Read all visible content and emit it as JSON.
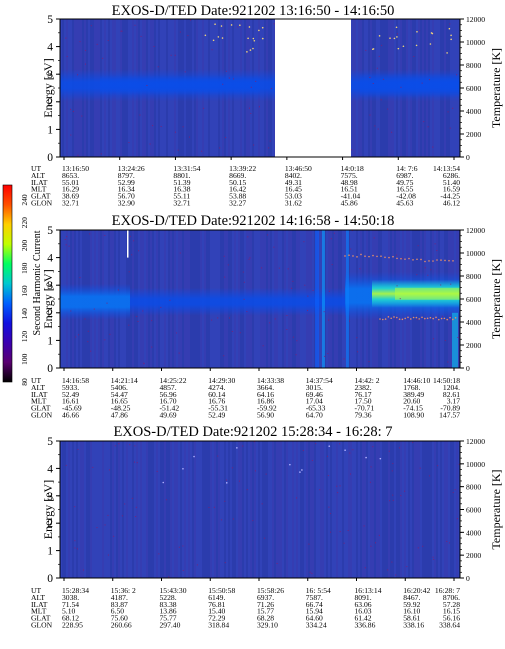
{
  "colors": {
    "background": "#2f3fb4",
    "band_core": "#0a4de8",
    "band_hot": "#22d8d0",
    "band_hot2": "#b4ff3c",
    "speckle": "#8a1a6a",
    "gap": "#ffffff"
  },
  "colorbar": {
    "label": "Second Harmonic Current",
    "ticks": [
      "240",
      "220",
      "200",
      "180",
      "160",
      "140",
      "120",
      "100",
      "80"
    ],
    "colors": [
      "#000000",
      "#5a0070",
      "#3a00b0",
      "#1010e0",
      "#0060ff",
      "#00c8d0",
      "#00ff60",
      "#c0ff00",
      "#ffd000",
      "#ff5000",
      "#ff0000"
    ]
  },
  "chart_data": [
    {
      "type": "heatmap",
      "title": "EXOS-D/TED   Date:921202   13:16:50 - 14:16:50",
      "ylabel": "Energy [eV]",
      "y2label": "Temperature [K]",
      "ylim": [
        0,
        5
      ],
      "y2lim": [
        0,
        12000
      ],
      "yticks": [
        "0",
        "1",
        "2",
        "3",
        "4",
        "5"
      ],
      "y2ticks": [
        "0",
        "2000",
        "4000",
        "6000",
        "8000",
        "10000",
        "12000"
      ],
      "band_center_eV": 2.6,
      "data_gap": true,
      "ephemeris": {
        "labels": [
          "UT",
          "ALT",
          "ILAT",
          "MLT",
          "GLAT",
          "GLON"
        ],
        "columns": [
          [
            "13:16:50",
            "8653.",
            "55.01",
            "16.29",
            "38.69",
            "32.71"
          ],
          [
            "13:24:26",
            "8797.",
            "52.99",
            "16.34",
            "56.70",
            "32.90"
          ],
          [
            "13:31:54",
            "8801.",
            "51.39",
            "16.38",
            "55.11",
            "32.71"
          ],
          [
            "13:39:22",
            "8669.",
            "50.15",
            "16.42",
            "53.88",
            "32.27"
          ],
          [
            "13:46:50",
            "8402.",
            "49.31",
            "16.45",
            "53.03",
            "31.62"
          ],
          [
            "14:0:18",
            "7575.",
            "48.98",
            "16.51",
            "-41.04",
            "45.86"
          ],
          [
            "14: 7:6",
            "6987.",
            "49.75",
            "16.55",
            "-42.08",
            "45.63"
          ],
          [
            "14:13:54",
            "6286.",
            "51.40",
            "16.59",
            "-44.25",
            "46.12"
          ]
        ]
      }
    },
    {
      "type": "heatmap",
      "title": "EXOS-D/TED   Date:921202   14:16:58 - 14:50:18",
      "ylabel": "Energy [eV]",
      "y2label": "Temperature [K]",
      "ylim": [
        0,
        5
      ],
      "y2lim": [
        0,
        12000
      ],
      "yticks": [
        "0",
        "1",
        "2",
        "3",
        "4",
        "5"
      ],
      "y2ticks": [
        "0",
        "2000",
        "4000",
        "6000",
        "8000",
        "10000",
        "12000"
      ],
      "band_center_eV": 2.4,
      "ephemeris": {
        "labels": [
          "UT",
          "ALT",
          "ILAT",
          "MLT",
          "GLAT",
          "GLON"
        ],
        "columns": [
          [
            "14:16:58",
            "5933.",
            "52.49",
            "16.61",
            "-45.69",
            "46.66"
          ],
          [
            "14:21:14",
            "5406.",
            "54.47",
            "16.65",
            "-48.25",
            "47.86"
          ],
          [
            "14:25:22",
            "4857.",
            "56.96",
            "16.70",
            "-51.42",
            "49.69"
          ],
          [
            "14:29:30",
            "4274.",
            "60.14",
            "16.76",
            "-55.31",
            "52.49"
          ],
          [
            "14:33:38",
            "3664.",
            "64.16",
            "16.86",
            "-59.92",
            "56.90"
          ],
          [
            "14:37:54",
            "3015.",
            "69.46",
            "17.04",
            "-65.33",
            "64.70"
          ],
          [
            "14:42: 2",
            "2382.",
            "76.17",
            "17.50",
            "-70.71",
            "79.36"
          ],
          [
            "14:46:10",
            "1768.",
            "389.49",
            "20.60",
            "-74.15",
            "108.90"
          ],
          [
            "14:50:18",
            "1204.",
            "82.61",
            "3.17",
            "-70.89",
            "147.57"
          ]
        ]
      }
    },
    {
      "type": "heatmap",
      "title": "EXOS-D/TED   Date:921202   15:28:34 - 16:28: 7",
      "ylabel": "Energy [eV]",
      "y2label": "Temperature [K]",
      "ylim": [
        0,
        5
      ],
      "y2lim": [
        0,
        12000
      ],
      "yticks": [
        "0",
        "1",
        "2",
        "3",
        "4",
        "5"
      ],
      "y2ticks": [
        "0",
        "2000",
        "4000",
        "6000",
        "8000",
        "10000",
        "12000"
      ],
      "ephemeris": {
        "labels": [
          "UT",
          "ALT",
          "ILAT",
          "MLT",
          "GLAT",
          "GLON"
        ],
        "columns": [
          [
            "15:28:34",
            "3038.",
            "71.54",
            "5.10",
            "68.12",
            "228.95"
          ],
          [
            "15:36: 2",
            "4187.",
            "83.87",
            "6.50",
            "75.60",
            "260.66"
          ],
          [
            "15:43:30",
            "5228.",
            "83.38",
            "13.86",
            "75.77",
            "297.40"
          ],
          [
            "15:50:58",
            "6149.",
            "76.81",
            "15.40",
            "72.29",
            "318.84"
          ],
          [
            "15:58:26",
            "6937.",
            "71.26",
            "15.77",
            "68.28",
            "329.10"
          ],
          [
            "16: 5:54",
            "7587.",
            "66.74",
            "15.94",
            "64.60",
            "334.24"
          ],
          [
            "16:13:14",
            "8091.",
            "63.06",
            "16.03",
            "61.42",
            "336.86"
          ],
          [
            "16:20:42",
            "8467.",
            "59.92",
            "16.10",
            "58.61",
            "338.16"
          ],
          [
            "16:28: 7",
            "8706.",
            "57.28",
            "16.15",
            "56.16",
            "338.64"
          ]
        ]
      }
    }
  ]
}
